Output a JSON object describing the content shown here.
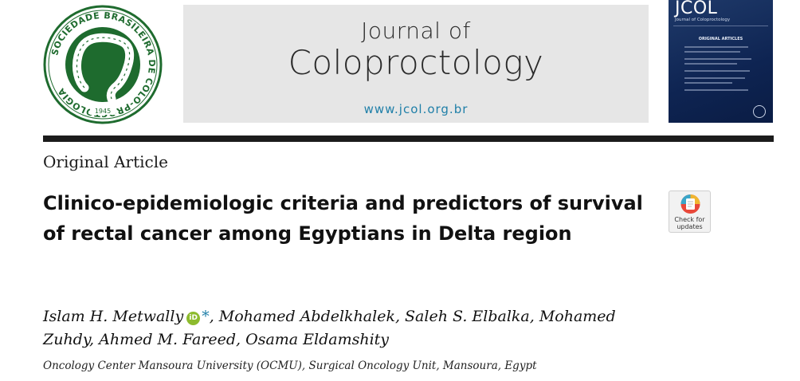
{
  "society_logo": {
    "ring_text": "SOCIEDADE BRASILEIRA DE COLO-PROCTOLOGIA",
    "year": "1945"
  },
  "journal": {
    "line1": "Journal of",
    "line2": "Coloproctology",
    "url": "www.jcol.org.br"
  },
  "cover": {
    "title": "JCOL",
    "subtitle": "Journal of Coloproctology",
    "section": "ORIGINAL ARTICLES"
  },
  "article": {
    "type": "Original Article",
    "title": "Clinico-epidemiologic criteria and predictors of survival of rectal cancer among Egyptians in Delta region",
    "first_author": "Islam H. Metwally",
    "orcid_icon": "iD",
    "corresponding_mark": "*",
    "other_authors": ", Mohamed Abdelkhalek, Saleh S. Elbalka, Mohamed Zuhdy, Ahmed M. Fareed, Osama Eldamshity",
    "affiliation": "Oncology Center Mansoura University (OCMU), Surgical Oncology Unit, Mansoura, Egypt"
  },
  "crossmark": {
    "label_line1": "Check for",
    "label_line2": "updates"
  },
  "colors": {
    "logo_green": "#1e6b2e",
    "url_blue": "#1f7fa8",
    "cover_navy": "#0e2452",
    "orcid_green": "#8dbb2e"
  }
}
